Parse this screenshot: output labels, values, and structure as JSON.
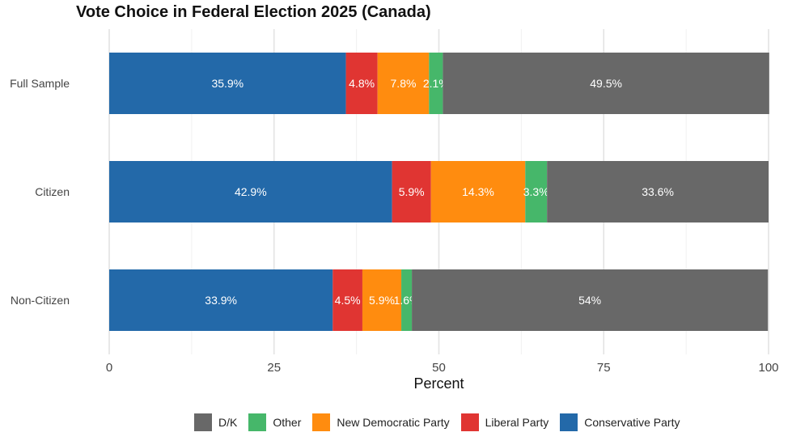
{
  "chart_data": {
    "type": "bar",
    "orientation": "horizontal",
    "stacked": true,
    "title": "Vote Choice in Federal Election 2025 (Canada)",
    "xlabel": "Percent",
    "ylabel": "",
    "xlim": [
      0,
      100
    ],
    "x_ticks": [
      "0",
      "25",
      "50",
      "75",
      "100"
    ],
    "categories": [
      "Full Sample",
      "Citizen",
      "Non-Citizen"
    ],
    "grid": true,
    "legend_position": "bottom",
    "series": [
      {
        "name": "Conservative Party",
        "color": "#2369a9",
        "values": [
          35.9,
          42.9,
          33.9
        ],
        "labels": [
          "35.9%",
          "42.9%",
          "33.9%"
        ]
      },
      {
        "name": "Liberal Party",
        "color": "#e03532",
        "values": [
          4.8,
          5.9,
          4.5
        ],
        "labels": [
          "4.8%",
          "5.9%",
          "4.5%"
        ]
      },
      {
        "name": "New Democratic Party",
        "color": "#ff8c0f",
        "values": [
          7.8,
          14.3,
          5.9
        ],
        "labels": [
          "7.8%",
          "14.3%",
          "5.9%"
        ]
      },
      {
        "name": "Other",
        "color": "#46b76a",
        "values": [
          2.1,
          3.3,
          1.6
        ],
        "labels": [
          "2.1%",
          "3.3%",
          "1.6%"
        ]
      },
      {
        "name": "D/K",
        "color": "#686868",
        "values": [
          49.5,
          33.6,
          54.0
        ],
        "labels": [
          "49.5%",
          "33.6%",
          "54%"
        ]
      }
    ],
    "legend_order": [
      "D/K",
      "Other",
      "New Democratic Party",
      "Liberal Party",
      "Conservative Party"
    ]
  }
}
